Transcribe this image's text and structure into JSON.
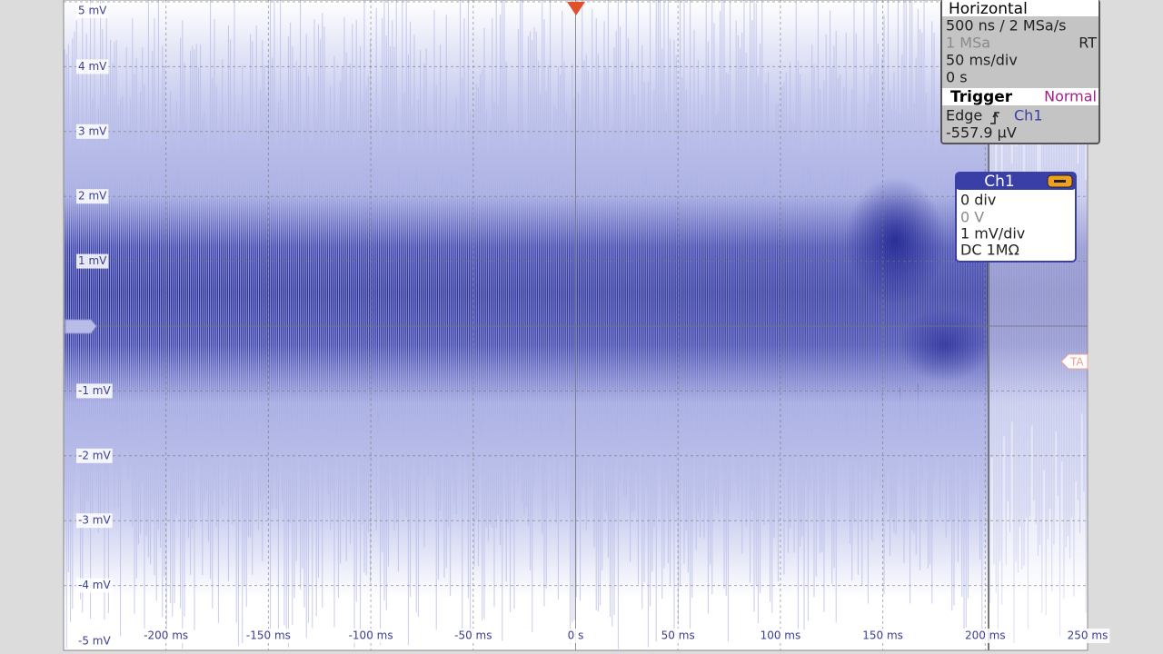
{
  "scope": {
    "y_axis_labels": [
      "5 mV",
      "4 mV",
      "3 mV",
      "2 mV",
      "1 mV",
      "-1 mV",
      "-2 mV",
      "-3 mV",
      "-4 mV",
      "-5 mV"
    ],
    "x_axis_labels": [
      "-200 ms",
      "-150 ms",
      "-100 ms",
      "-50 ms",
      "0 s",
      "50 ms",
      "100 ms",
      "150 ms",
      "200 ms",
      "250 ms"
    ],
    "trigger_marker": "TA"
  },
  "horizontal_panel": {
    "title": "Horizontal",
    "timebase": "500 ns / 2 MSa/s",
    "memory": "1 MSa",
    "mode": "RT",
    "scale": "50 ms/div",
    "position": "0 s"
  },
  "trigger_panel": {
    "title": "Trigger",
    "mode": "Normal",
    "type": "Edge",
    "source": "Ch1",
    "level": "-557.9 µV"
  },
  "channel_panel": {
    "title": "Ch1",
    "offset_div": "0 div",
    "offset_v": "0 V",
    "scale": "1 mV/div",
    "coupling": "DC 1MΩ"
  }
}
